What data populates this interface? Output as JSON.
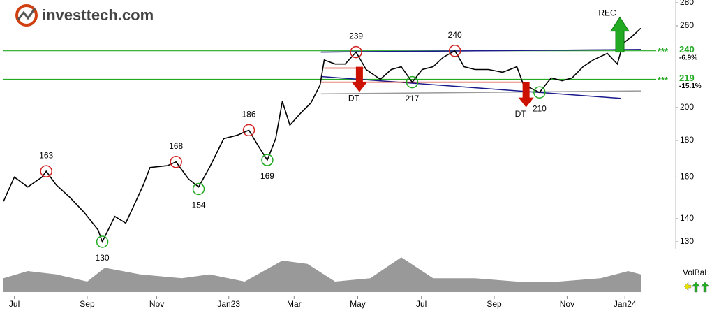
{
  "brand": "investtech.com",
  "chart_data": {
    "type": "line",
    "scale": "log",
    "color": "#000000",
    "x": [
      0,
      1.3,
      2.9,
      4.6,
      5.1,
      6.3,
      7.9,
      9.6,
      11.3,
      11.8,
      13.3,
      14.6,
      15.8,
      16.7,
      17.5,
      19.6,
      20.6,
      22.1,
      23.3,
      24.6,
      26.3,
      27.9,
      29.3,
      30.4,
      31.5,
      32.5,
      33.3,
      34.2,
      35.4,
      36.7,
      37.8,
      38.3,
      39.6,
      40.8,
      42.1,
      43.3,
      45,
      46.3,
      47.5,
      48.8,
      50,
      51.3,
      52.5,
      53.9,
      55,
      56.3,
      57.9,
      59.6,
      61.3,
      62.1,
      62.9,
      64,
      65.4,
      66.7,
      67.9,
      69.2,
      70.4,
      72.1,
      73.3,
      74,
      75,
      76.1
    ],
    "values": [
      148,
      160,
      155,
      160,
      163,
      156,
      150,
      143,
      135,
      130,
      141,
      138,
      148,
      156,
      165,
      166,
      168,
      159,
      155,
      165,
      181,
      183,
      186,
      177,
      169,
      181,
      204,
      189,
      196,
      203,
      215,
      233,
      230,
      230,
      239,
      226,
      219,
      226,
      228,
      217,
      226,
      228,
      235,
      240,
      228,
      226,
      226,
      224,
      228,
      215,
      213,
      210,
      220,
      218,
      220,
      228,
      233,
      238,
      230,
      246,
      251,
      258
    ],
    "xlim": [
      0,
      76.1
    ],
    "ylim": [
      130,
      280
    ],
    "xticks": [
      {
        "value": 1.3,
        "label": "Jul"
      },
      {
        "value": 10,
        "label": "Sep"
      },
      {
        "value": 18.3,
        "label": "Nov"
      },
      {
        "value": 26.9,
        "label": "Jan23"
      },
      {
        "value": 34.7,
        "label": "Mar"
      },
      {
        "value": 42.3,
        "label": "May"
      },
      {
        "value": 49.9,
        "label": "Jul"
      },
      {
        "value": 58.6,
        "label": "Sep"
      },
      {
        "value": 67.3,
        "label": "Nov"
      },
      {
        "value": 74.2,
        "label": "Jan24"
      }
    ],
    "yticks": [
      130,
      140,
      160,
      180,
      200,
      260,
      280
    ],
    "extremes": [
      {
        "x": 5.1,
        "value": 163,
        "kind": "high"
      },
      {
        "x": 11.8,
        "value": 130,
        "kind": "low"
      },
      {
        "x": 20.6,
        "value": 168,
        "kind": "high"
      },
      {
        "x": 23.3,
        "value": 154,
        "kind": "low"
      },
      {
        "x": 29.3,
        "value": 186,
        "kind": "high"
      },
      {
        "x": 31.5,
        "value": 169,
        "kind": "low"
      },
      {
        "x": 42.1,
        "value": 239,
        "kind": "high"
      },
      {
        "x": 48.8,
        "value": 217,
        "kind": "low"
      },
      {
        "x": 53.9,
        "value": 240,
        "kind": "high"
      },
      {
        "x": 64,
        "value": 210,
        "kind": "low"
      }
    ],
    "levels": [
      {
        "value": 240,
        "change": "-6.9%"
      },
      {
        "value": 219,
        "change": "-15.1%"
      }
    ],
    "level_mark": "***",
    "trend_lines": [
      {
        "x": [
          37.9,
          76.1
        ],
        "values": [
          239,
          241
        ],
        "color": "#9a9a9a"
      },
      {
        "x": [
          37.9,
          76.1
        ],
        "values": [
          209,
          211
        ],
        "color": "#9a9a9a"
      },
      {
        "x": [
          37.9,
          76.1
        ],
        "values": [
          239,
          241
        ],
        "color": "#1a1a8c"
      },
      {
        "x": [
          37.9,
          73.7
        ],
        "values": [
          221,
          206
        ],
        "color": "#1a1a8c"
      },
      {
        "x": [
          38.3,
          43.3
        ],
        "values": [
          227,
          227
        ],
        "color": "#cc1100"
      },
      {
        "x": [
          37.9,
          62.1
        ],
        "values": [
          217,
          217
        ],
        "color": "#cc1100"
      }
    ],
    "signals": [
      {
        "label": "DT",
        "x": 42.5,
        "value": 228,
        "direction": "down"
      },
      {
        "label": "DT",
        "x": 62.4,
        "value": 217,
        "direction": "down"
      },
      {
        "label": "REC",
        "x": 73.6,
        "value": 239,
        "direction": "up"
      }
    ],
    "volume_balance": {
      "label": "VolBal",
      "color": "#999999",
      "ylim": [
        0,
        100
      ],
      "x": [
        0,
        2.9,
        6.3,
        10,
        12.1,
        16.3,
        21.3,
        24.6,
        28.8,
        33.3,
        36.3,
        39.6,
        43.8,
        47.5,
        51.3,
        56.3,
        61.3,
        66.3,
        71.3,
        74.6,
        76.1
      ],
      "values": [
        33,
        50,
        42,
        25,
        58,
        42,
        33,
        42,
        25,
        75,
        67,
        25,
        33,
        83,
        33,
        33,
        25,
        25,
        33,
        50,
        42
      ]
    }
  }
}
